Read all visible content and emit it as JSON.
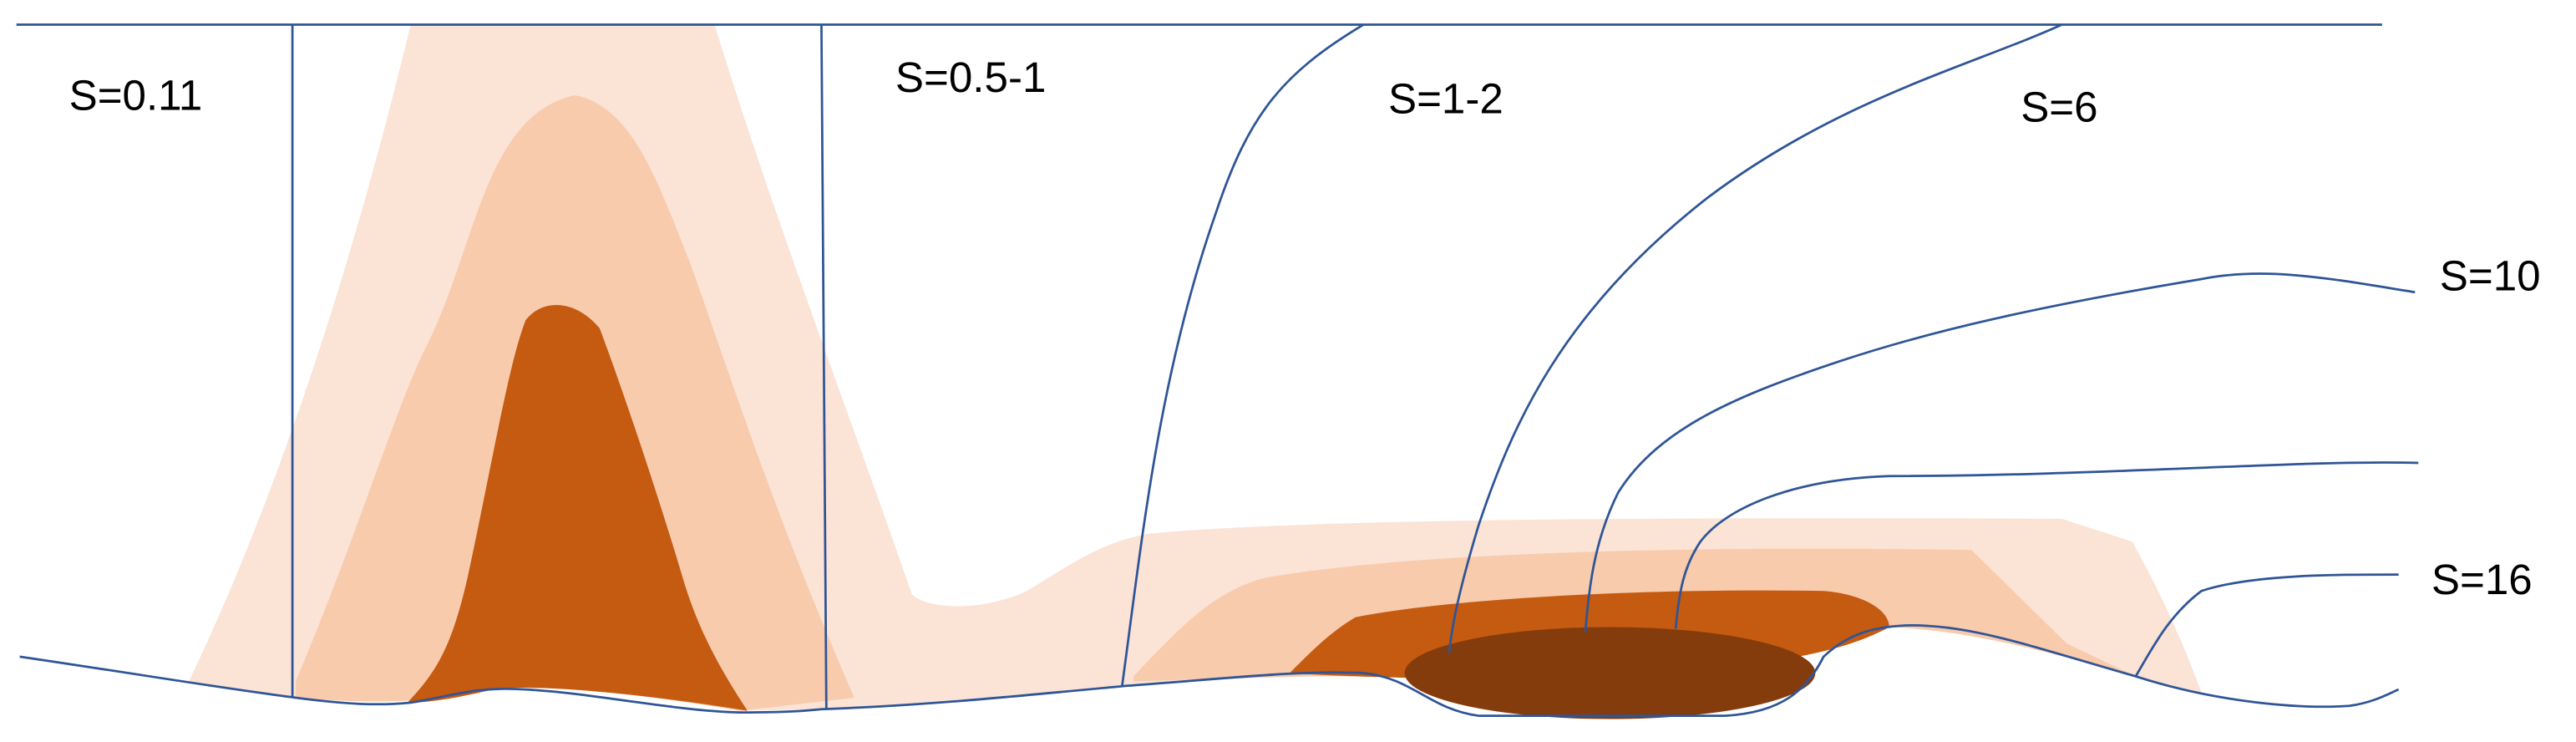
{
  "labels": [
    "S=0.11",
    "S=0.5-1",
    "S=1-2",
    "S=6",
    "S=10",
    "S=16"
  ]
}
